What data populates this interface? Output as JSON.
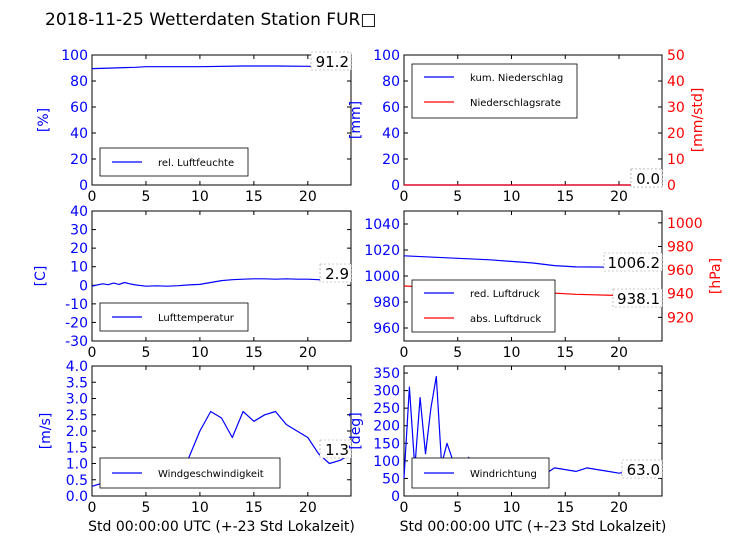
{
  "title": "2018-11-25 Wetterdaten Station FUR□",
  "colors": {
    "left_axis": "#0000ff",
    "right_axis": "#ff0000",
    "axis": "#000000"
  },
  "chart_data": [
    {
      "id": "humidity",
      "type": "line",
      "xlim": [
        0,
        24
      ],
      "xticks": [
        0,
        5,
        10,
        15,
        20
      ],
      "ylim": [
        0,
        100
      ],
      "yticks": [
        0,
        20,
        40,
        60,
        80,
        100
      ],
      "ylabel": "[%]",
      "value_label": "91.2",
      "legend": [
        "rel. Luftfeuchte"
      ],
      "legend_position": "lower-left",
      "series": [
        {
          "name": "rel. Luftfeuchte",
          "axis": "left",
          "color": "#0000ff",
          "x": [
            0,
            2,
            4,
            5,
            7,
            10,
            14,
            17,
            20,
            24
          ],
          "y": [
            89.5,
            90.0,
            90.5,
            91.0,
            91.0,
            91.0,
            91.5,
            91.5,
            91.3,
            91.2
          ]
        }
      ]
    },
    {
      "id": "precipitation",
      "type": "line",
      "xlim": [
        0,
        24
      ],
      "xticks": [
        0,
        5,
        10,
        15,
        20
      ],
      "ylim": [
        0,
        100
      ],
      "yticks": [
        0,
        20,
        40,
        60,
        80,
        100
      ],
      "ylabel": "[mm]",
      "y2lim": [
        0,
        50
      ],
      "y2ticks": [
        0,
        10,
        20,
        30,
        40,
        50
      ],
      "y2label": "[mm/std]",
      "value_label": "0.0",
      "value_label_2": "0.0",
      "legend": [
        "kum. Niederschlag",
        "Niederschlagsrate"
      ],
      "legend_position": "upper-left",
      "series": [
        {
          "name": "kum. Niederschlag",
          "axis": "left",
          "color": "#0000ff",
          "x": [
            0,
            24
          ],
          "y": [
            0,
            0
          ]
        },
        {
          "name": "Niederschlagsrate",
          "axis": "right",
          "color": "#ff0000",
          "x": [
            0,
            24
          ],
          "y": [
            0,
            0
          ]
        }
      ]
    },
    {
      "id": "temperature",
      "type": "line",
      "xlim": [
        0,
        24
      ],
      "xticks": [
        0,
        5,
        10,
        15,
        20
      ],
      "ylim": [
        -30,
        40
      ],
      "yticks": [
        -30,
        -20,
        -10,
        0,
        10,
        20,
        30,
        40
      ],
      "ylabel": "[C]",
      "value_label": "2.9",
      "legend": [
        "Lufttemperatur"
      ],
      "legend_position": "lower-left",
      "series": [
        {
          "name": "Lufttemperatur",
          "axis": "left",
          "color": "#0000ff",
          "x": [
            0,
            0.5,
            1,
            1.5,
            2,
            2.5,
            3,
            3.5,
            4,
            5,
            6,
            7,
            8,
            9,
            10,
            11,
            12,
            13,
            14,
            15,
            16,
            17,
            18,
            19,
            20,
            21,
            22,
            23,
            24
          ],
          "y": [
            -0.5,
            0.2,
            0.8,
            0.3,
            1.2,
            0.5,
            1.5,
            0.8,
            0.2,
            -0.5,
            -0.3,
            -0.5,
            -0.2,
            0.2,
            0.5,
            1.5,
            2.5,
            3.0,
            3.3,
            3.5,
            3.5,
            3.3,
            3.5,
            3.3,
            3.3,
            3.0,
            2.5,
            3.0,
            2.9
          ]
        }
      ]
    },
    {
      "id": "pressure",
      "type": "line",
      "xlim": [
        0,
        24
      ],
      "xticks": [
        0,
        5,
        10,
        15,
        20
      ],
      "ylim": [
        950,
        1050
      ],
      "yticks": [
        960,
        980,
        1000,
        1020,
        1040
      ],
      "y2lim": [
        900,
        1010
      ],
      "y2ticks": [
        920,
        940,
        960,
        980,
        1000
      ],
      "y2label": "[hPa]",
      "value_label": "1006.2",
      "value_label_2": "938.1",
      "legend": [
        "red. Luftdruck",
        "abs. Luftdruck"
      ],
      "legend_position": "lower-left",
      "series": [
        {
          "name": "red. Luftdruck",
          "axis": "left",
          "color": "#0000ff",
          "x": [
            0,
            4,
            8,
            12,
            14,
            16,
            20,
            24
          ],
          "y": [
            1015.5,
            1014.0,
            1012.5,
            1010.0,
            1008.0,
            1007.0,
            1006.8,
            1006.2
          ]
        },
        {
          "name": "abs. Luftdruck",
          "axis": "right",
          "color": "#ff0000",
          "x": [
            0,
            4,
            8,
            12,
            16,
            20,
            24
          ],
          "y": [
            946.5,
            945.0,
            943.5,
            941.5,
            939.5,
            938.5,
            938.1
          ]
        }
      ]
    },
    {
      "id": "windspeed",
      "type": "line",
      "xlim": [
        0,
        24
      ],
      "xticks": [
        0,
        5,
        10,
        15,
        20
      ],
      "ylim": [
        0,
        4
      ],
      "yticks": [
        0.0,
        0.5,
        1.0,
        1.5,
        2.0,
        2.5,
        3.0,
        3.5,
        4.0
      ],
      "ylabel": "[m/s]",
      "xlabel": "Std 00:00:00 UTC (+-23 Std Lokalzeit)",
      "value_label": "1.3",
      "legend": [
        "Windgeschwindigkeit"
      ],
      "legend_position": "lower-left",
      "series": [
        {
          "name": "Windgeschwindigkeit",
          "axis": "left",
          "color": "#0000ff",
          "x": [
            0,
            1,
            2,
            3,
            4,
            5,
            6,
            7,
            8,
            9,
            10,
            11,
            12,
            13,
            14,
            15,
            16,
            17,
            18,
            19,
            20,
            21,
            22,
            23,
            24
          ],
          "y": [
            0.3,
            0.4,
            0.7,
            1.0,
            0.6,
            0.9,
            0.7,
            0.6,
            0.4,
            1.2,
            2.0,
            2.6,
            2.4,
            1.8,
            2.6,
            2.3,
            2.5,
            2.6,
            2.2,
            2.0,
            1.8,
            1.3,
            1.0,
            1.1,
            1.3
          ]
        }
      ]
    },
    {
      "id": "winddirection",
      "type": "line",
      "xlim": [
        0,
        24
      ],
      "xticks": [
        0,
        5,
        10,
        15,
        20
      ],
      "ylim": [
        0,
        370
      ],
      "yticks": [
        0,
        50,
        100,
        150,
        200,
        250,
        300,
        350
      ],
      "ylabel": "[deg]",
      "xlabel": "Std 00:00:00 UTC (+-23 Std Lokalzeit)",
      "value_label": "63.0",
      "legend": [
        "Windrichtung"
      ],
      "legend_position": "lower-left",
      "series": [
        {
          "name": "Windrichtung",
          "axis": "left",
          "color": "#0000ff",
          "x": [
            0,
            0.5,
            1,
            1.5,
            2,
            2.5,
            3,
            3.5,
            4,
            5,
            6,
            7,
            8,
            9,
            10,
            11,
            12,
            13,
            14,
            15,
            16,
            17,
            18,
            19,
            20,
            21,
            22,
            23,
            24
          ],
          "y": [
            50,
            310,
            80,
            280,
            120,
            250,
            340,
            90,
            150,
            60,
            110,
            70,
            90,
            60,
            100,
            70,
            80,
            60,
            80,
            75,
            70,
            80,
            75,
            70,
            65,
            70,
            80,
            60,
            63
          ]
        }
      ]
    }
  ]
}
